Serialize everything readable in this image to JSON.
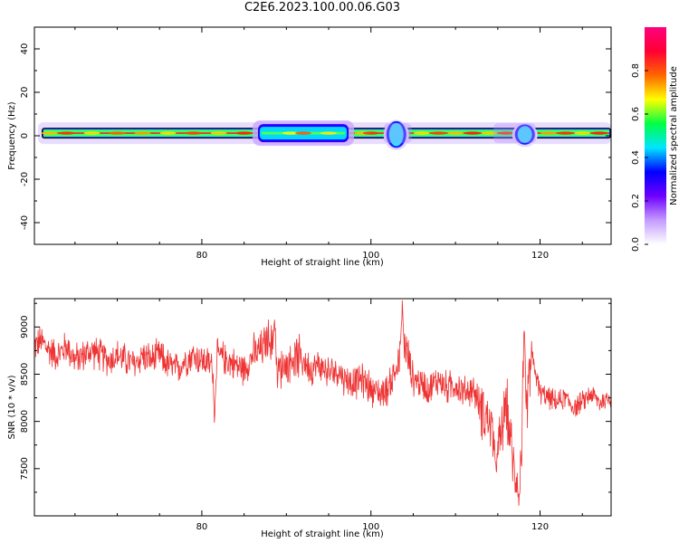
{
  "title": "C2E6.2023.100.00.06.G03",
  "chart_data": [
    {
      "type": "heatmap",
      "xlabel": "Height of straight line (km)",
      "ylabel": "Frequency (Hz)",
      "xlim": [
        60.2,
        128.4
      ],
      "ylim": [
        -50,
        50
      ],
      "x_ticks": [
        "80",
        "100",
        "120"
      ],
      "y_ticks": [
        "40",
        "20",
        "0",
        "-20",
        "-40"
      ],
      "colorbar": {
        "label": "Normalized spectral amplitude",
        "range": [
          0,
          1
        ],
        "ticks": [
          "0.0",
          "0.2",
          "0.4",
          "0.6",
          "0.8"
        ],
        "colors": [
          "#ffffff",
          "#c49bff",
          "#6e00ff",
          "#0000ff",
          "#00e5ff",
          "#00ff44",
          "#ffff00",
          "#ff6600",
          "#ff0033",
          "#ff0080"
        ]
      },
      "band": {
        "center_hz": 1.2,
        "halfwidth_hz": 2.5,
        "segments": [
          {
            "x": [
              60.2,
              86
            ],
            "level": "uniform"
          },
          {
            "x": [
              86,
              98
            ],
            "level": "wide-blue-halo"
          },
          {
            "x": [
              98,
              101
            ],
            "level": "strong-yellow-red"
          },
          {
            "x": [
              101,
              105
            ],
            "level": "dip-near-103"
          },
          {
            "x": [
              105,
              117
            ],
            "level": "mixed-green-yellow"
          },
          {
            "x": [
              117,
              119
            ],
            "level": "dip-near-118"
          },
          {
            "x": [
              119,
              128.4
            ],
            "level": "uniform"
          }
        ]
      }
    },
    {
      "type": "line",
      "xlabel": "Height of straight line (km)",
      "ylabel": "SNR (10 * v/v)",
      "xlim": [
        60.2,
        128.4
      ],
      "ylim": [
        7000,
        9300
      ],
      "x_ticks": [
        "80",
        "100",
        "120"
      ],
      "y_ticks": [
        "9000",
        "8500",
        "8000",
        "7500"
      ],
      "color": "#ee3333",
      "series": [
        {
          "x": [
            60.2,
            61,
            62,
            63,
            64,
            65,
            66,
            67,
            68,
            69,
            70,
            71,
            72,
            73,
            74,
            75,
            76,
            77,
            78,
            79,
            80,
            81,
            82,
            83,
            84,
            85,
            86,
            87,
            88,
            89,
            90,
            91,
            92,
            93,
            94,
            95,
            96,
            97,
            98,
            99,
            100,
            101,
            102,
            103,
            104,
            105,
            106,
            107,
            108,
            109,
            110,
            111,
            112,
            113,
            114,
            115,
            116,
            117,
            118,
            119,
            120,
            121,
            122,
            123,
            124,
            125,
            126,
            127,
            128.4
          ],
          "values": [
            8800,
            8850,
            8750,
            8700,
            8800,
            8650,
            8700,
            8750,
            8700,
            8650,
            8700,
            8650,
            8600,
            8700,
            8650,
            8700,
            8600,
            8550,
            8650,
            8700,
            8650,
            8600,
            8700,
            8650,
            8600,
            8550,
            8700,
            8750,
            8900,
            8550,
            8600,
            8700,
            8650,
            8550,
            8600,
            8500,
            8550,
            8450,
            8400,
            8450,
            8350,
            8300,
            8350,
            8550,
            8800,
            8450,
            8400,
            8350,
            8450,
            8350,
            8400,
            8300,
            8350,
            8150,
            8000,
            7650,
            8200,
            7400,
            7800,
            8700,
            8300,
            8250,
            8200,
            8250,
            8150,
            8200,
            8300,
            8200,
            8250
          ]
        }
      ]
    }
  ]
}
